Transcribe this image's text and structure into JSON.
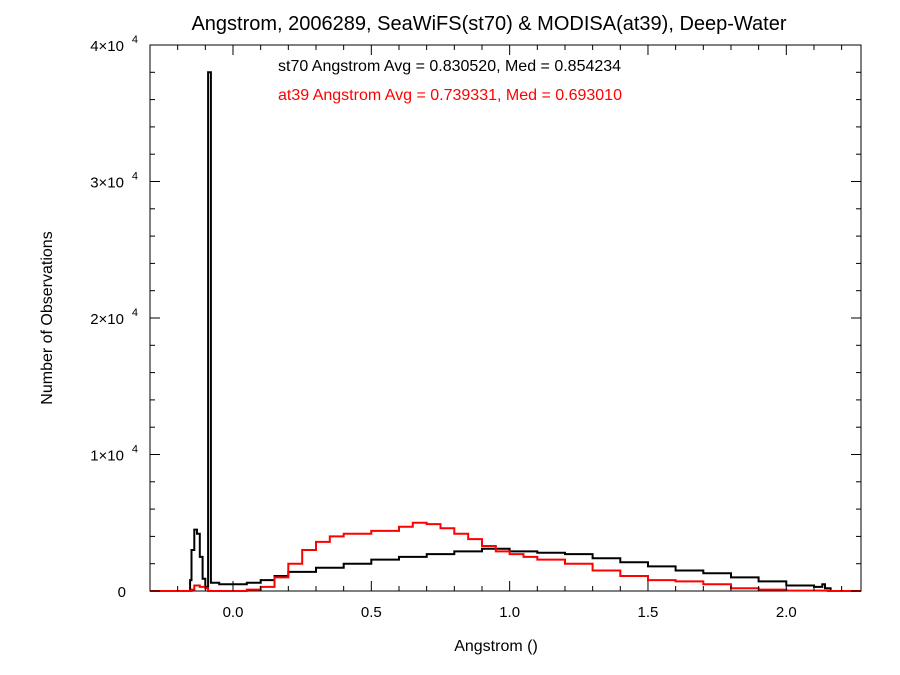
{
  "chart_data": {
    "type": "line",
    "title": "Angstrom, 2006289, SeaWiFS(st70) & MODISA(at39), Deep-Water",
    "xlabel": "Angstrom ()",
    "ylabel": "Number of Observations",
    "xlim": [
      -0.3,
      2.27
    ],
    "ylim": [
      0,
      40000
    ],
    "x_ticks": [
      {
        "value": 0.0,
        "label": "0.0"
      },
      {
        "value": 0.5,
        "label": "0.5"
      },
      {
        "value": 1.0,
        "label": "1.0"
      },
      {
        "value": 1.5,
        "label": "1.5"
      },
      {
        "value": 2.0,
        "label": "2.0"
      }
    ],
    "y_ticks": [
      {
        "value": 0,
        "label": "0"
      },
      {
        "value": 10000,
        "label": "1×10",
        "exp": "4"
      },
      {
        "value": 20000,
        "label": "2×10",
        "exp": "4"
      },
      {
        "value": 30000,
        "label": "3×10",
        "exp": "4"
      },
      {
        "value": 40000,
        "label": "4×10",
        "exp": "4"
      }
    ],
    "annotations": [
      {
        "text": "st70 Angstrom Avg = 0.830520, Med = 0.854234",
        "color": "#000000"
      },
      {
        "text": "at39 Angstrom Avg = 0.739331, Med = 0.693010",
        "color": "#ff0000"
      }
    ],
    "series": [
      {
        "color": "#000000",
        "style": "step",
        "points": [
          [
            -0.3,
            0
          ],
          [
            -0.16,
            0
          ],
          [
            -0.155,
            800
          ],
          [
            -0.15,
            3000
          ],
          [
            -0.14,
            4500
          ],
          [
            -0.13,
            4200
          ],
          [
            -0.12,
            2500
          ],
          [
            -0.11,
            900
          ],
          [
            -0.1,
            300
          ],
          [
            -0.09,
            38000
          ],
          [
            -0.08,
            600
          ],
          [
            -0.05,
            500
          ],
          [
            0.0,
            500
          ],
          [
            0.05,
            600
          ],
          [
            0.1,
            800
          ],
          [
            0.15,
            1100
          ],
          [
            0.2,
            1400
          ],
          [
            0.3,
            1700
          ],
          [
            0.4,
            2000
          ],
          [
            0.5,
            2300
          ],
          [
            0.6,
            2500
          ],
          [
            0.7,
            2700
          ],
          [
            0.8,
            2900
          ],
          [
            0.9,
            3100
          ],
          [
            0.95,
            3100
          ],
          [
            1.0,
            2900
          ],
          [
            1.1,
            2800
          ],
          [
            1.2,
            2700
          ],
          [
            1.3,
            2400
          ],
          [
            1.4,
            2100
          ],
          [
            1.5,
            1800
          ],
          [
            1.6,
            1500
          ],
          [
            1.7,
            1300
          ],
          [
            1.8,
            1000
          ],
          [
            1.9,
            700
          ],
          [
            2.0,
            400
          ],
          [
            2.1,
            300
          ],
          [
            2.13,
            500
          ],
          [
            2.14,
            200
          ],
          [
            2.16,
            0
          ],
          [
            2.27,
            0
          ]
        ]
      },
      {
        "color": "#ff0000",
        "style": "step",
        "points": [
          [
            -0.3,
            0
          ],
          [
            -0.17,
            0
          ],
          [
            -0.15,
            100
          ],
          [
            -0.14,
            400
          ],
          [
            -0.12,
            300
          ],
          [
            -0.1,
            200
          ],
          [
            -0.09,
            0
          ],
          [
            0.0,
            0
          ],
          [
            0.05,
            100
          ],
          [
            0.1,
            300
          ],
          [
            0.15,
            1000
          ],
          [
            0.2,
            2000
          ],
          [
            0.25,
            3000
          ],
          [
            0.3,
            3600
          ],
          [
            0.35,
            4000
          ],
          [
            0.4,
            4200
          ],
          [
            0.5,
            4400
          ],
          [
            0.6,
            4700
          ],
          [
            0.65,
            5000
          ],
          [
            0.7,
            4900
          ],
          [
            0.75,
            4600
          ],
          [
            0.8,
            4200
          ],
          [
            0.85,
            3800
          ],
          [
            0.9,
            3300
          ],
          [
            0.95,
            2900
          ],
          [
            1.0,
            2700
          ],
          [
            1.05,
            2500
          ],
          [
            1.1,
            2300
          ],
          [
            1.2,
            2000
          ],
          [
            1.3,
            1500
          ],
          [
            1.4,
            1100
          ],
          [
            1.5,
            800
          ],
          [
            1.6,
            700
          ],
          [
            1.7,
            500
          ],
          [
            1.8,
            200
          ],
          [
            1.9,
            100
          ],
          [
            2.0,
            30
          ],
          [
            2.15,
            0
          ],
          [
            2.27,
            0
          ]
        ]
      }
    ]
  }
}
